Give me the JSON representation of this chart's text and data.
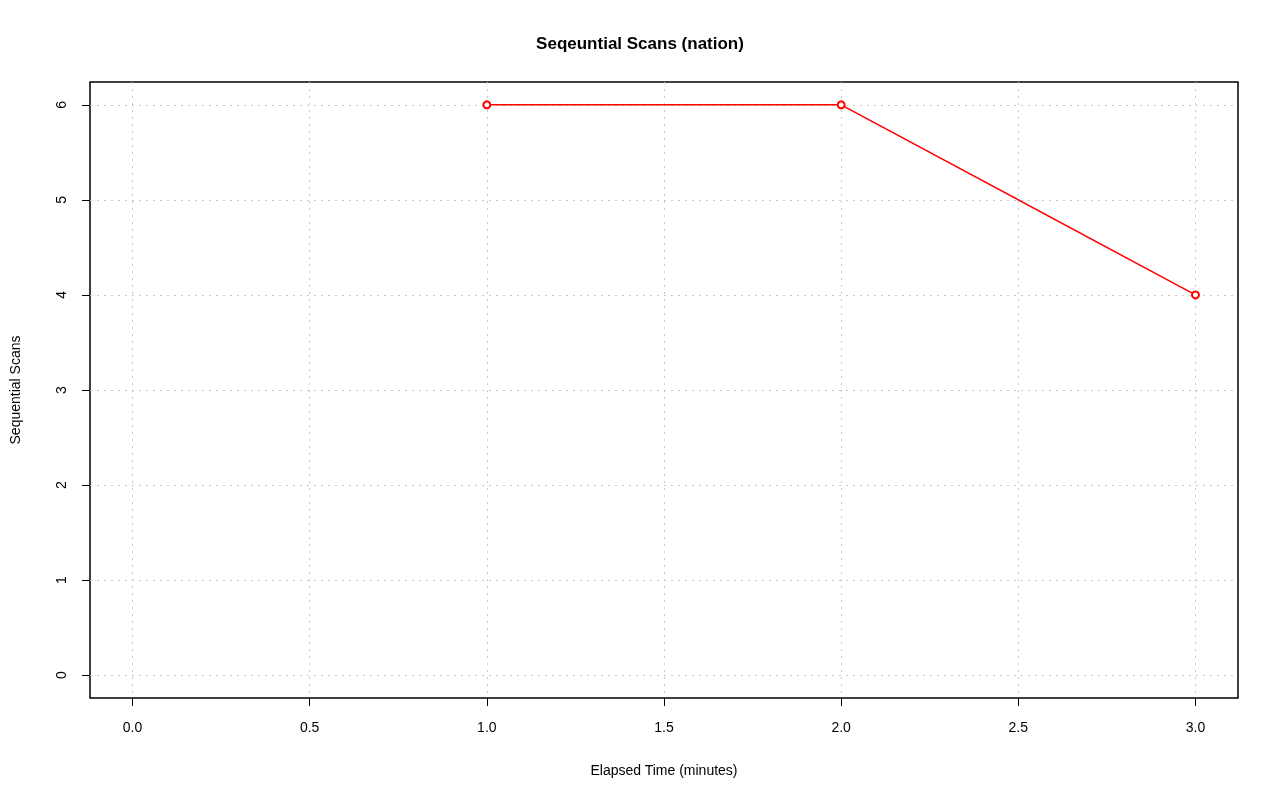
{
  "chart_data": {
    "type": "line",
    "title": "Seqeuntial Scans (nation)",
    "xlabel": "Elapsed Time (minutes)",
    "ylabel": "Sequential Scans",
    "x": [
      1,
      2,
      3
    ],
    "series": [
      {
        "color": "#ff0000",
        "values": [
          6,
          6,
          4
        ]
      }
    ],
    "xlim": [
      -0.12,
      3.12
    ],
    "ylim": [
      -0.24,
      6.24
    ],
    "xticks": [
      {
        "value": 0,
        "label": "0.0"
      },
      {
        "value": 0.5,
        "label": "0.5"
      },
      {
        "value": 1,
        "label": "1.0"
      },
      {
        "value": 1.5,
        "label": "1.5"
      },
      {
        "value": 2,
        "label": "2.0"
      },
      {
        "value": 2.5,
        "label": "2.5"
      },
      {
        "value": 3,
        "label": "3.0"
      }
    ],
    "yticks": [
      0,
      1,
      2,
      3,
      4,
      5,
      6
    ],
    "grid": true,
    "marker": "circle",
    "line_style": "solid"
  }
}
